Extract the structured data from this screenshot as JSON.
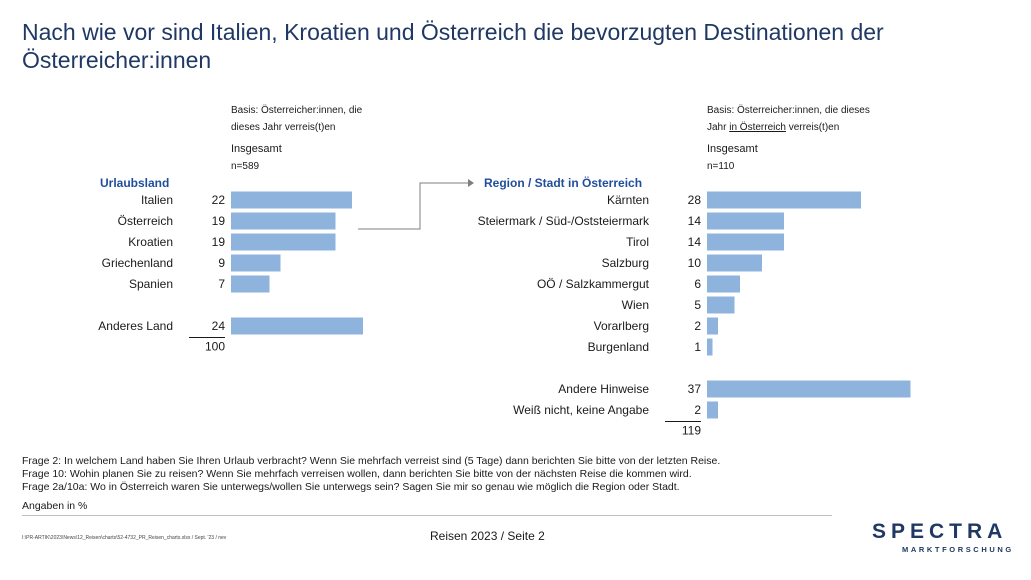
{
  "title": "Nach wie vor sind Italien, Kroatien und Österreich die bevorzugten Destinationen der Österreicher:innen",
  "chart_data": [
    {
      "type": "bar",
      "header": "Urlaubsland",
      "basis_line1": "Basis: Österreicher:innen, die",
      "basis_line2": "dieses Jahr verreis(t)en",
      "group_label": "Insgesamt",
      "n_label": "n=589",
      "categories": [
        "Italien",
        "Österreich",
        "Kroatien",
        "Griechenland",
        "Spanien",
        "Anderes Land"
      ],
      "values": [
        22,
        19,
        19,
        9,
        7,
        24
      ],
      "total": 100
    },
    {
      "type": "bar",
      "header": "Region / Stadt in Österreich",
      "basis_line1": "Basis: Österreicher:innen, die dieses",
      "basis_line2_pre": "Jahr ",
      "basis_line2_ul": "in Österreich",
      "basis_line2_post": " verreis(t)en",
      "group_label": "Insgesamt",
      "n_label": "n=110",
      "categories": [
        "Kärnten",
        "Steiermark / Süd-/Oststeiermark",
        "Tirol",
        "Salzburg",
        "OÖ / Salzkammergut",
        "Wien",
        "Vorarlberg",
        "Burgenland",
        "Andere Hinweise",
        "Weiß nicht, keine Angabe"
      ],
      "values": [
        28,
        14,
        14,
        10,
        6,
        5,
        2,
        1,
        37,
        2
      ],
      "total": 119
    }
  ],
  "footer": {
    "q1": "Frage 2: In welchem Land haben Sie Ihren Urlaub verbracht? Wenn Sie mehrfach verreist sind (5 Tage) dann berichten Sie bitte von der letzten Reise.",
    "q2": "Frage 10: Wohin planen Sie zu reisen? Wenn Sie mehrfach verreisen wollen, dann berichten Sie bitte von der nächsten Reise die kommen wird.",
    "q3": "Frage 2a/10a: Wo in Österreich waren Sie unterwegs/wollen Sie unterwegs sein? Sagen Sie mir so genau wie möglich die Region oder Stadt.",
    "unit": "Angaben in %",
    "path": "I:\\PR-ARTIK\\2023\\News\\12_Reisen\\charts\\52-4732_PR_Reisen_charts.xlsx / Sept. '23 / nev",
    "page": "Reisen 2023  /  Seite 2"
  },
  "logo": {
    "main": "SPECTRA",
    "sub": "MARKTFORSCHUNG"
  },
  "colors": {
    "bar": "#8eb3dc",
    "title": "#1f3864",
    "header": "#1f4e9c"
  }
}
